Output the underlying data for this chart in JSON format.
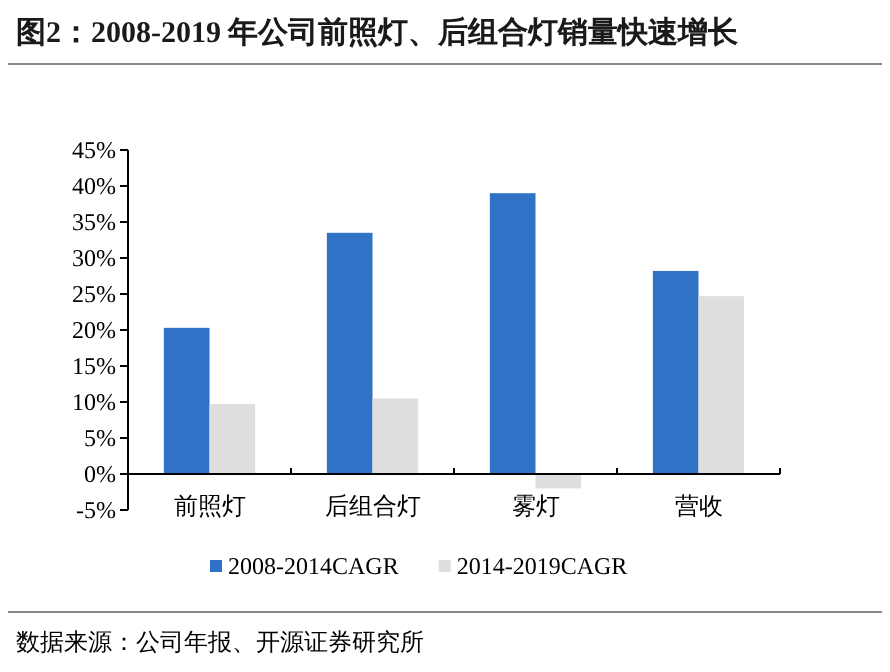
{
  "chart_data": {
    "type": "bar",
    "title": "图2：2008-2019 年公司前照灯、后组合灯销量快速增长",
    "categories": [
      "前照灯",
      "后组合灯",
      "雾灯",
      "营收"
    ],
    "series": [
      {
        "name": "2008-2014CAGR",
        "color": "#3073c6",
        "values": [
          20.3,
          33.5,
          39.0,
          28.2
        ]
      },
      {
        "name": "2014-2019CAGR",
        "color": "#dedede",
        "values": [
          9.7,
          10.5,
          -2.0,
          24.7
        ]
      }
    ],
    "ylim": [
      -5,
      45
    ],
    "yticks": [
      {
        "value": -5,
        "label": "-5%"
      },
      {
        "value": 0,
        "label": "0%"
      },
      {
        "value": 5,
        "label": "5%"
      },
      {
        "value": 10,
        "label": "10%"
      },
      {
        "value": 15,
        "label": "15%"
      },
      {
        "value": 20,
        "label": "20%"
      },
      {
        "value": 25,
        "label": "25%"
      },
      {
        "value": 30,
        "label": "30%"
      },
      {
        "value": 35,
        "label": "35%"
      },
      {
        "value": 40,
        "label": "40%"
      },
      {
        "value": 45,
        "label": "45%"
      }
    ],
    "grid": false,
    "legend": "bottom",
    "annotations": [
      "数据来源：公司年报、开源证券研究所"
    ]
  }
}
